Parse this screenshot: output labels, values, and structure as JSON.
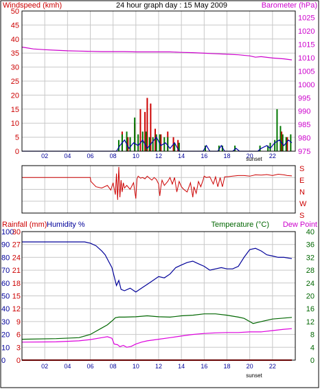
{
  "panel1": {
    "title": "24 hour graph day : 15 May 2009",
    "left_label": "Windspeed (kmh)",
    "right_label": "Barometer (hPa)"
  },
  "panel2": {
    "direction_labels": [
      "S",
      "E",
      "N",
      "W",
      "S"
    ]
  },
  "panel3": {
    "rainfall_label": "Rainfall (mm)",
    "humidity_label": "Humidity %",
    "temperature_label": "Temperature (°C)",
    "dewpoint_label": "Dew Point"
  },
  "x_ticks": [
    "02",
    "04",
    "06",
    "08",
    "10",
    "12",
    "14",
    "16",
    "18",
    "20",
    "22"
  ],
  "sunset_label": "sunset",
  "colors": {
    "wind_axis": "#cc0000",
    "baro_axis": "#cc00cc",
    "humidity_axis": "#000099",
    "temp_axis": "#006600",
    "grid": "#c8c8c8"
  },
  "chart_data": [
    {
      "id": "wind-baro",
      "type": "bar",
      "title": "24 hour graph day : 15 May 2009",
      "x_unit": "hour",
      "xlim": [
        0,
        24
      ],
      "left_axis": {
        "label": "Windspeed (kmh)",
        "ticks": [
          0,
          5,
          10,
          15,
          20,
          25,
          30,
          35,
          40,
          45,
          50
        ],
        "ylim": [
          0,
          50
        ]
      },
      "right_axis": {
        "label": "Barometer (hPa)",
        "ticks": [
          975,
          980,
          985,
          990,
          995,
          1000,
          1005,
          1010,
          1015,
          1020,
          1025
        ],
        "ylim": [
          975,
          1027.5
        ]
      },
      "series": [
        {
          "name": "Barometer (hPa)",
          "kind": "line",
          "axis": "right",
          "color": "#cc00cc",
          "x": [
            0,
            1,
            2,
            3,
            4,
            5,
            6,
            7,
            8,
            9,
            10,
            11,
            12,
            13,
            14,
            15,
            16,
            17,
            18,
            19,
            20,
            20.5,
            21,
            22,
            23,
            23.7
          ],
          "y": [
            1014.0,
            1013.3,
            1013.0,
            1012.8,
            1012.6,
            1012.5,
            1012.4,
            1012.3,
            1012.3,
            1012.3,
            1012.2,
            1012.2,
            1012.2,
            1012.2,
            1012.0,
            1011.9,
            1011.7,
            1011.5,
            1011.3,
            1011.1,
            1010.7,
            1010.2,
            1010.4,
            1009.9,
            1009.6,
            1009.2
          ]
        },
        {
          "name": "Gust",
          "kind": "bars",
          "axis": "left",
          "color": "#cc0000",
          "x": [
            8.8,
            9.3,
            9.9,
            10.4,
            10.8,
            11.0,
            11.3,
            11.7,
            12.2,
            12.8,
            13.3,
            13.7,
            22.4,
            22.8,
            23.3
          ],
          "y": [
            7,
            5,
            10,
            15,
            14,
            19,
            17,
            8,
            6,
            7,
            5,
            4,
            4,
            7,
            5
          ]
        },
        {
          "name": "Average",
          "kind": "bars",
          "axis": "left",
          "color": "#007700",
          "x": [
            8.5,
            8.8,
            9.2,
            9.5,
            9.9,
            10.2,
            10.6,
            10.9,
            11.2,
            11.5,
            11.8,
            12.1,
            12.5,
            12.8,
            13.4,
            13.8,
            16.1,
            17.3,
            17.6,
            18.7,
            20.9,
            21.6,
            21.8,
            22.2,
            22.4,
            22.7,
            22.9,
            23.2,
            23.6
          ],
          "y": [
            4,
            6,
            7,
            5,
            12,
            6,
            7,
            7,
            5,
            5,
            6,
            6,
            5,
            5,
            3,
            3,
            2,
            2,
            2,
            2,
            2,
            2,
            3,
            4,
            15,
            9,
            6,
            5,
            6
          ]
        },
        {
          "name": "Wind",
          "kind": "line",
          "axis": "left",
          "color": "#0000aa",
          "x": [
            0,
            8.3,
            8.6,
            9.0,
            9.4,
            9.8,
            10.2,
            10.6,
            11.0,
            11.4,
            11.8,
            12.2,
            12.6,
            13.0,
            13.4,
            13.8,
            14.2,
            15.9,
            16.2,
            16.5,
            17.2,
            17.5,
            17.8,
            18.5,
            18.8,
            19.1,
            20.7,
            21.0,
            21.5,
            21.8,
            22.2,
            22.6,
            23.0,
            23.4,
            23.7
          ],
          "y": [
            0,
            0,
            2,
            4,
            1,
            3,
            2,
            4,
            1,
            3,
            5,
            2,
            3,
            1,
            3,
            0,
            0,
            0,
            2,
            0,
            0,
            2,
            0,
            0,
            1,
            0,
            0,
            1,
            2,
            1,
            3,
            4,
            2,
            4,
            3
          ]
        }
      ]
    },
    {
      "id": "wind-direction",
      "type": "line",
      "x_unit": "hour",
      "xlim": [
        0,
        24
      ],
      "y_axis": {
        "labels": [
          "S",
          "E",
          "N",
          "W",
          "S"
        ],
        "ylim": [
          0,
          360
        ]
      },
      "series": [
        {
          "name": "Wind direction",
          "color": "#cc0000",
          "x": [
            0,
            6.0,
            6.05,
            6.5,
            7.0,
            7.5,
            7.8,
            8.0,
            8.2,
            8.3,
            8.4,
            8.5,
            8.6,
            8.7,
            8.8,
            8.9,
            9.0,
            9.2,
            9.5,
            9.8,
            10.0,
            10.1,
            10.2,
            10.4,
            10.6,
            10.8,
            11.0,
            11.2,
            11.4,
            11.6,
            11.8,
            12.0,
            12.1,
            12.2,
            12.3,
            12.5,
            12.8,
            13.0,
            13.2,
            13.4,
            13.6,
            13.8,
            14.0,
            14.2,
            14.5,
            14.8,
            15.0,
            15.1,
            15.3,
            15.5,
            15.7,
            15.9,
            16.0,
            16.2,
            16.5,
            16.8,
            17.0,
            17.2,
            17.4,
            17.6,
            17.8,
            18.0,
            18.5,
            19.0,
            19.5,
            20.0,
            20.5,
            21.0,
            21.5,
            22.0,
            22.5,
            23.0,
            23.3,
            23.7
          ],
          "y": [
            270,
            270,
            240,
            200,
            190,
            210,
            175,
            230,
            140,
            300,
            100,
            350,
            120,
            250,
            160,
            230,
            190,
            210,
            180,
            230,
            110,
            260,
            280,
            265,
            270,
            260,
            280,
            265,
            250,
            270,
            255,
            220,
            130,
            200,
            250,
            210,
            240,
            270,
            220,
            270,
            160,
            240,
            200,
            180,
            160,
            230,
            120,
            200,
            150,
            240,
            200,
            250,
            280,
            270,
            275,
            220,
            275,
            200,
            270,
            200,
            275,
            275,
            280,
            285,
            285,
            280,
            290,
            288,
            292,
            285,
            295,
            290,
            285,
            282
          ]
        }
      ]
    },
    {
      "id": "rain-humidity-temp",
      "type": "line",
      "x_unit": "hour",
      "xlim": [
        0,
        24
      ],
      "axes": {
        "humidity": {
          "label": "Humidity %",
          "ticks": [
            0,
            10,
            20,
            30,
            40,
            50,
            60,
            70,
            80,
            90,
            100
          ],
          "ylim": [
            0,
            100
          ]
        },
        "rainfall": {
          "label": "Rainfall (mm)",
          "ticks": [
            0,
            3,
            6,
            9,
            12,
            15,
            18,
            21,
            24,
            27,
            30
          ],
          "ylim": [
            0,
            30
          ]
        },
        "temperature": {
          "label": "Temperature (°C)",
          "ticks": [
            0,
            4,
            8,
            12,
            16,
            20,
            24,
            28,
            32,
            36,
            40
          ],
          "ylim": [
            0,
            40
          ]
        }
      },
      "series": [
        {
          "name": "Humidity %",
          "axis": "humidity",
          "color": "#000099",
          "x": [
            0,
            5.0,
            5.5,
            6.0,
            6.5,
            7.0,
            7.3,
            7.6,
            7.9,
            8.1,
            8.3,
            8.5,
            8.7,
            9.0,
            9.5,
            10.0,
            10.5,
            11.0,
            11.5,
            12.0,
            12.5,
            13.0,
            13.5,
            14.0,
            14.5,
            15.0,
            15.5,
            16.0,
            16.5,
            17.0,
            17.5,
            18.0,
            18.5,
            19.0,
            19.5,
            20.0,
            20.5,
            21.0,
            21.5,
            22.0,
            22.5,
            23.0,
            23.7
          ],
          "y": [
            92,
            92,
            92,
            91,
            89,
            85,
            82,
            77,
            72,
            65,
            58,
            62,
            55,
            54,
            56,
            53,
            56,
            59,
            62,
            65,
            64,
            67,
            72,
            74,
            76,
            77,
            75,
            73,
            70,
            71,
            72,
            71,
            71,
            73,
            80,
            86,
            87,
            85,
            82,
            81,
            80,
            80,
            79
          ]
        },
        {
          "name": "Temperature (°C)",
          "axis": "temperature",
          "color": "#006600",
          "x": [
            0,
            3.0,
            5.0,
            6.0,
            7.0,
            7.5,
            8.0,
            8.2,
            8.5,
            9.0,
            10.0,
            11.0,
            12.0,
            13.0,
            14.0,
            15.0,
            16.0,
            17.0,
            18.0,
            19.0,
            19.5,
            20.0,
            20.3,
            21.0,
            22.0,
            23.0,
            23.7
          ],
          "y": [
            6.5,
            6.7,
            7.0,
            8.0,
            10.0,
            11.0,
            12.5,
            13.2,
            13.4,
            13.4,
            13.5,
            13.8,
            13.5,
            13.4,
            13.8,
            14.0,
            14.4,
            14.4,
            14.0,
            13.4,
            13.0,
            12.0,
            11.4,
            12.0,
            12.8,
            13.1,
            13.3
          ]
        },
        {
          "name": "Dew Point",
          "axis": "temperature",
          "color": "#dd00dd",
          "x": [
            0,
            3.0,
            5.0,
            6.0,
            7.0,
            7.5,
            7.9,
            8.1,
            8.4,
            8.6,
            8.9,
            9.2,
            9.6,
            10.0,
            10.5,
            11.0,
            12.0,
            13.0,
            14.0,
            15.0,
            16.0,
            17.0,
            18.0,
            19.0,
            20.0,
            21.0,
            22.0,
            23.0,
            23.7
          ],
          "y": [
            5.6,
            5.7,
            6.0,
            6.4,
            7.0,
            7.3,
            6.8,
            5.0,
            4.8,
            4.2,
            4.6,
            4.0,
            4.3,
            5.0,
            5.6,
            6.0,
            6.5,
            7.0,
            7.5,
            8.0,
            8.3,
            8.5,
            8.6,
            8.6,
            8.8,
            8.8,
            9.2,
            9.6,
            9.8
          ]
        },
        {
          "name": "Rainfall (mm)",
          "axis": "rainfall",
          "color": "#cc0000",
          "x": [
            0,
            23.7
          ],
          "y": [
            0,
            0
          ]
        }
      ]
    }
  ]
}
